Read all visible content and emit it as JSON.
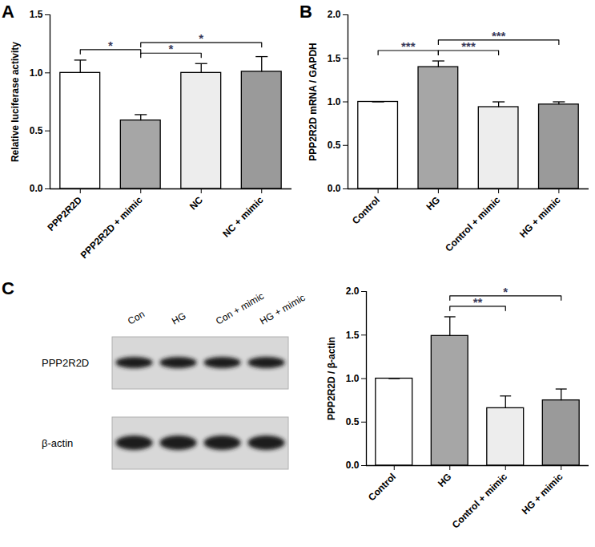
{
  "chart_data": [
    {
      "type": "bar",
      "panel": "A",
      "ylabel": "Relative luciferase activity",
      "categories": [
        "PPP2R2D",
        "PPP2R2D + mimic",
        "NC",
        "NC + mimic"
      ],
      "values": [
        1.0,
        0.59,
        1.0,
        1.01
      ],
      "errors": [
        0.11,
        0.05,
        0.08,
        0.13
      ],
      "colors": [
        "#ffffff",
        "#a6a6a6",
        "#ededed",
        "#9a9a9a"
      ],
      "ylim": [
        0,
        1.5
      ],
      "yticks": [
        {
          "value": 0,
          "label": "0.0"
        },
        {
          "value": 0.5,
          "label": "0.5"
        },
        {
          "value": 1,
          "label": "1.0"
        },
        {
          "value": 1.5,
          "label": "1.5"
        }
      ],
      "annotations": [
        {
          "from": 0,
          "to": 1,
          "label": "*"
        },
        {
          "from": 1,
          "to": 2,
          "label": "*"
        },
        {
          "from": 1,
          "to": 3,
          "label": "*"
        }
      ]
    },
    {
      "type": "bar",
      "panel": "B",
      "ylabel": "PPP2R2D mRNA / GAPDH",
      "categories": [
        "Control",
        "HG",
        "Control + mimic",
        "HG + mimic"
      ],
      "values": [
        1.0,
        1.4,
        0.94,
        0.97
      ],
      "errors": [
        0,
        0.07,
        0.06,
        0.03
      ],
      "colors": [
        "#ffffff",
        "#a6a6a6",
        "#ededed",
        "#9a9a9a"
      ],
      "ylim": [
        0,
        2
      ],
      "yticks": [
        {
          "value": 0,
          "label": "0.0"
        },
        {
          "value": 0.5,
          "label": "0.5"
        },
        {
          "value": 1,
          "label": "1.0"
        },
        {
          "value": 1.5,
          "label": "1.5"
        },
        {
          "value": 2,
          "label": "2.0"
        }
      ],
      "annotations": [
        {
          "from": 0,
          "to": 1,
          "label": "***"
        },
        {
          "from": 1,
          "to": 2,
          "label": "***"
        },
        {
          "from": 1,
          "to": 3,
          "label": "***"
        }
      ]
    },
    {
      "type": "bar",
      "panel": "C",
      "ylabel": "PPP2R2D / β-actin",
      "categories": [
        "Control",
        "HG",
        "Control + mimic",
        "HG + mimic"
      ],
      "values": [
        1.0,
        1.49,
        0.66,
        0.75
      ],
      "errors": [
        0,
        0.22,
        0.14,
        0.13
      ],
      "colors": [
        "#ffffff",
        "#a6a6a6",
        "#ededed",
        "#9a9a9a"
      ],
      "ylim": [
        0,
        2
      ],
      "yticks": [
        {
          "value": 0,
          "label": "0.0"
        },
        {
          "value": 0.5,
          "label": "0.5"
        },
        {
          "value": 1,
          "label": "1.0"
        },
        {
          "value": 1.5,
          "label": "1.5"
        },
        {
          "value": 2,
          "label": "2.0"
        }
      ],
      "annotations": [
        {
          "from": 1,
          "to": 2,
          "label": "**"
        },
        {
          "from": 1,
          "to": 3,
          "label": "*"
        }
      ]
    }
  ],
  "blot": {
    "lanes": [
      "Con",
      "HG",
      "Con + mimic",
      "HG + mimic"
    ],
    "rows": [
      "PPP2R2D",
      "β-actin"
    ]
  }
}
